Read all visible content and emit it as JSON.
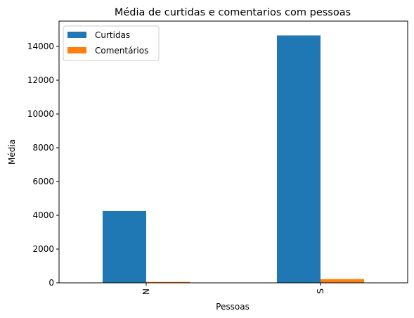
{
  "chart_data": {
    "type": "bar",
    "title": "Média de curtidas e comentarios com pessoas",
    "xlabel": "Pessoas",
    "ylabel": "Média",
    "categories": [
      "N",
      "S"
    ],
    "series": [
      {
        "name": "Curtidas",
        "values": [
          4250,
          14650
        ],
        "color": "#1f77b4"
      },
      {
        "name": "Comentários",
        "values": [
          55,
          220
        ],
        "color": "#ff7f0e"
      }
    ],
    "ylim": [
      0,
      15500
    ],
    "yticks": [
      0,
      2000,
      4000,
      6000,
      8000,
      10000,
      12000,
      14000
    ],
    "grid": false,
    "legend_position": "top-left"
  }
}
